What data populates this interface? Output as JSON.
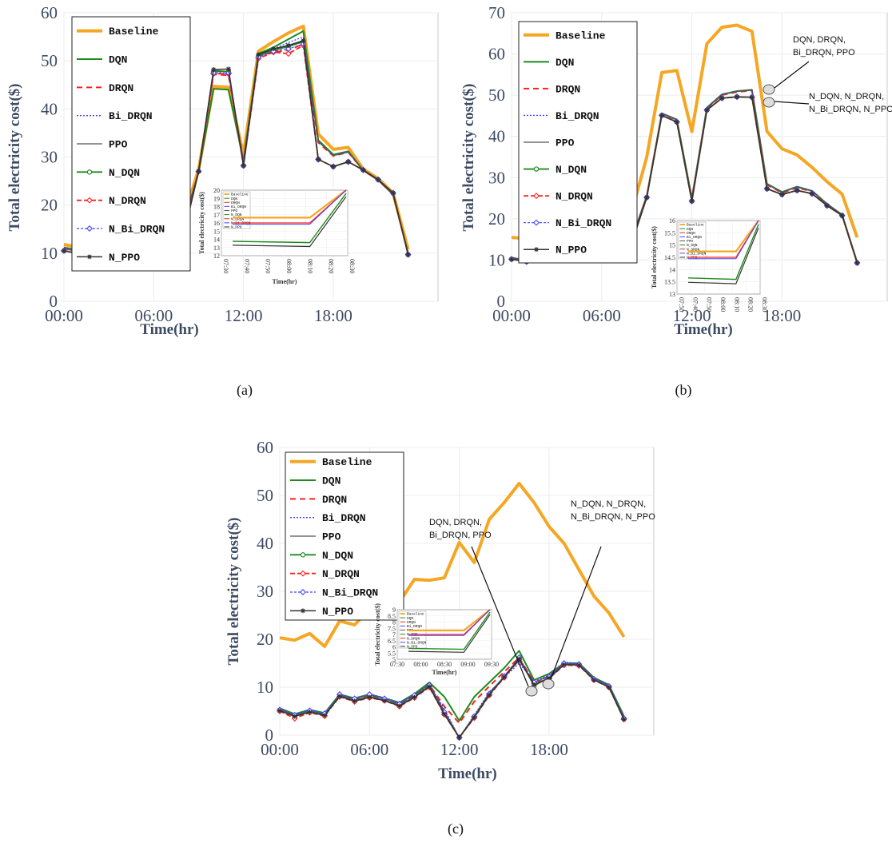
{
  "colors": {
    "Baseline": "#f5a623",
    "DQN": "#1f8a1f",
    "DRQN": "#ff2020",
    "Bi_DRQN": "#4444ff",
    "PPO": "#555555",
    "N_DQN": "#1f8a1f",
    "N_DRQN": "#ff2020",
    "N_Bi_DRQN": "#4444ff",
    "N_PPO": "#333333"
  },
  "legend_labels": [
    "Baseline",
    "DQN",
    "DRQN",
    "Bi_DRQN",
    "PPO",
    "N_DQN",
    "N_DRQN",
    "N_Bi_DRQN",
    "N_PPO"
  ],
  "chart_data": [
    {
      "type": "line",
      "caption": "(a)",
      "xlabel": "Time(hr)",
      "ylabel": "Total electricity cost($)",
      "xticks": [
        "00:00",
        "06:00",
        "12:00",
        "18:00"
      ],
      "yticks": [
        0,
        10,
        20,
        30,
        40,
        50,
        60
      ],
      "ylim": [
        0,
        60
      ],
      "x": [
        0,
        1,
        2,
        3,
        4,
        5,
        6,
        7,
        8,
        9,
        10,
        11,
        12,
        13,
        14,
        15,
        16,
        17,
        18,
        19,
        20,
        21,
        22,
        23
      ],
      "legend_position": "top-left",
      "grid": true,
      "series": [
        {
          "name": "Baseline",
          "values": [
            11.8,
            11.2,
            13.2,
            12.0,
            16.3,
            15.2,
            17.0,
            17.5,
            17.2,
            27.5,
            44.7,
            44.5,
            30.5,
            52.0,
            54.0,
            55.8,
            57.2,
            34.8,
            31.6,
            32.0,
            27.5,
            25.5,
            22.5,
            10.8
          ]
        },
        {
          "name": "DQN",
          "values": [
            11.2,
            10.6,
            12.6,
            11.4,
            15.5,
            14.5,
            16.3,
            16.6,
            16.2,
            26.8,
            44.2,
            44.0,
            29.2,
            51.5,
            52.8,
            54.5,
            56.2,
            33.5,
            30.5,
            31.2,
            27.2,
            25.2,
            22.2,
            10.0
          ]
        },
        {
          "name": "DRQN",
          "values": [
            11.0,
            10.4,
            12.4,
            11.2,
            15.3,
            14.3,
            16.0,
            16.4,
            16.0,
            27.0,
            47.2,
            47.0,
            29.0,
            51.0,
            51.8,
            52.2,
            53.5,
            33.0,
            30.2,
            31.0,
            27.2,
            25.2,
            22.2,
            9.9
          ]
        },
        {
          "name": "Bi_DRQN",
          "values": [
            11.1,
            10.5,
            12.5,
            11.3,
            15.4,
            14.4,
            16.2,
            16.5,
            16.1,
            27.0,
            47.5,
            47.3,
            29.2,
            51.2,
            52.5,
            53.8,
            55.0,
            33.2,
            30.4,
            31.1,
            27.2,
            25.2,
            22.2,
            9.9
          ]
        },
        {
          "name": "PPO",
          "values": [
            10.9,
            10.3,
            12.3,
            11.1,
            15.2,
            14.2,
            15.9,
            16.3,
            15.9,
            26.9,
            48.0,
            47.8,
            28.8,
            51.3,
            52.5,
            53.0,
            54.0,
            33.2,
            30.3,
            31.0,
            27.2,
            25.2,
            22.2,
            9.8
          ]
        },
        {
          "name": "N_DQN",
          "values": [
            10.5,
            9.9,
            11.8,
            10.7,
            14.5,
            13.5,
            14.7,
            14.8,
            14.0,
            27.0,
            47.8,
            47.8,
            28.2,
            51.0,
            52.2,
            53.0,
            54.0,
            29.5,
            28.0,
            29.0,
            27.3,
            25.3,
            22.5,
            9.7
          ]
        },
        {
          "name": "N_DRQN",
          "values": [
            10.5,
            9.9,
            11.8,
            10.7,
            14.5,
            13.5,
            14.7,
            14.8,
            14.0,
            27.0,
            47.3,
            47.3,
            28.2,
            50.5,
            51.8,
            51.5,
            53.2,
            29.5,
            28.0,
            29.0,
            27.3,
            25.3,
            22.5,
            9.7
          ]
        },
        {
          "name": "N_Bi_DRQN",
          "values": [
            10.5,
            9.9,
            11.8,
            10.7,
            14.5,
            13.5,
            14.7,
            14.8,
            14.0,
            27.0,
            47.5,
            47.5,
            28.2,
            50.8,
            52.0,
            52.5,
            53.5,
            29.5,
            28.0,
            29.0,
            27.3,
            25.3,
            22.5,
            9.7
          ]
        },
        {
          "name": "N_PPO",
          "values": [
            10.5,
            9.9,
            11.8,
            10.7,
            14.5,
            13.5,
            14.7,
            14.8,
            14.0,
            27.0,
            48.2,
            48.3,
            28.2,
            51.3,
            52.5,
            53.2,
            54.2,
            29.5,
            28.0,
            29.0,
            27.3,
            25.3,
            22.5,
            9.7
          ]
        }
      ],
      "inset": {
        "ylabel": "Total electricity cost($)",
        "xlabel": "Time(hr)",
        "xticks": [
          "07:30",
          "07:40",
          "07:50",
          "08:00",
          "08:10",
          "08:20",
          "08:30"
        ],
        "yticks": [
          12,
          13,
          14,
          15,
          16,
          17,
          18,
          19,
          20
        ]
      }
    },
    {
      "type": "line",
      "caption": "(b)",
      "xlabel": "Time(hr)",
      "ylabel": "Total electricity cost($)",
      "xticks": [
        "00:00",
        "06:00",
        "12:00",
        "18:00"
      ],
      "yticks": [
        0,
        10,
        20,
        30,
        40,
        50,
        60,
        70
      ],
      "ylim": [
        0,
        70
      ],
      "x": [
        0,
        1,
        2,
        3,
        4,
        5,
        6,
        7,
        8,
        9,
        10,
        11,
        12,
        13,
        14,
        15,
        16,
        17,
        18,
        19,
        20,
        21,
        22,
        23
      ],
      "legend_position": "top-left",
      "grid": true,
      "annotations": [
        "DQN,      DRQN,",
        "Bi_DRQN, PPO",
        "N_DQN,     N_DRQN,",
        "N_Bi_DRQN, N_PPO"
      ],
      "series": [
        {
          "name": "Baseline",
          "values": [
            15.5,
            15.2,
            17.2,
            16.2,
            19.8,
            18.8,
            20.5,
            21.0,
            21.8,
            35.0,
            55.5,
            56.0,
            41.2,
            62.5,
            66.5,
            67.0,
            65.5,
            41.2,
            37.0,
            35.5,
            32.5,
            29.0,
            26.0,
            15.5
          ]
        },
        {
          "name": "DQN",
          "values": [
            10.6,
            9.9,
            11.9,
            11.1,
            15.0,
            13.9,
            15.1,
            15.2,
            15.1,
            25.6,
            45.6,
            44.1,
            25.0,
            47.0,
            50.2,
            51.0,
            51.3,
            28.5,
            26.5,
            27.8,
            26.8,
            23.6,
            21.0,
            9.5
          ]
        },
        {
          "name": "DRQN",
          "values": [
            10.5,
            9.8,
            11.8,
            11.0,
            14.9,
            13.8,
            15.0,
            15.1,
            15.0,
            25.5,
            45.5,
            44.0,
            24.8,
            46.8,
            50.0,
            50.8,
            51.1,
            28.3,
            26.3,
            27.6,
            26.6,
            23.5,
            20.9,
            9.4
          ]
        },
        {
          "name": "Bi_DRQN",
          "values": [
            10.6,
            9.9,
            11.9,
            11.1,
            15.0,
            13.9,
            15.1,
            15.2,
            15.1,
            25.6,
            45.6,
            44.1,
            25.0,
            47.0,
            50.2,
            51.0,
            51.3,
            28.5,
            26.5,
            27.8,
            26.8,
            23.6,
            21.0,
            9.5
          ]
        },
        {
          "name": "PPO",
          "values": [
            10.5,
            9.8,
            11.8,
            11.0,
            14.9,
            13.8,
            15.0,
            15.1,
            15.0,
            25.5,
            45.5,
            44.0,
            24.8,
            46.8,
            50.1,
            50.9,
            51.2,
            28.4,
            26.4,
            27.7,
            26.7,
            23.5,
            20.9,
            9.4
          ]
        },
        {
          "name": "N_DQN",
          "values": [
            10.2,
            9.6,
            11.5,
            10.8,
            14.3,
            13.3,
            14.3,
            14.4,
            14.2,
            25.2,
            45.1,
            43.5,
            24.3,
            46.4,
            49.3,
            49.6,
            49.5,
            27.3,
            25.9,
            26.9,
            26.1,
            23.2,
            20.8,
            9.3
          ]
        },
        {
          "name": "N_DRQN",
          "values": [
            10.2,
            9.6,
            11.5,
            10.8,
            14.3,
            13.3,
            14.3,
            14.4,
            14.2,
            25.2,
            45.1,
            43.5,
            24.3,
            46.4,
            49.3,
            49.6,
            49.5,
            27.3,
            25.9,
            26.9,
            26.1,
            23.2,
            20.8,
            9.3
          ]
        },
        {
          "name": "N_Bi_DRQN",
          "values": [
            10.2,
            9.6,
            11.5,
            10.8,
            14.3,
            13.3,
            14.3,
            14.4,
            14.2,
            25.2,
            45.1,
            43.5,
            24.3,
            46.4,
            49.3,
            49.6,
            49.5,
            27.3,
            25.9,
            26.9,
            26.1,
            23.2,
            20.8,
            9.3
          ]
        },
        {
          "name": "N_PPO",
          "values": [
            10.2,
            9.6,
            11.5,
            10.8,
            14.3,
            13.3,
            14.3,
            14.4,
            14.2,
            25.2,
            45.1,
            43.5,
            24.3,
            46.4,
            49.3,
            49.6,
            49.5,
            27.3,
            25.9,
            26.9,
            26.1,
            23.2,
            20.8,
            9.3
          ]
        }
      ],
      "inset": {
        "ylabel": "Total electricity cost($)",
        "xlabel": "",
        "xticks": [
          "07:50",
          "07:40",
          "07:50",
          "08:00",
          "08:10",
          "08:20",
          "08:30"
        ],
        "yticks": [
          13,
          13.5,
          14,
          14.5,
          15,
          15.5,
          16
        ]
      }
    },
    {
      "type": "line",
      "caption": "(c)",
      "xlabel": "Time(hr)",
      "ylabel": "Total electricity cost($)",
      "xticks": [
        "00:00",
        "06:00",
        "12:00",
        "18:00"
      ],
      "yticks": [
        0,
        10,
        20,
        30,
        40,
        50,
        60
      ],
      "ylim": [
        0,
        60
      ],
      "x": [
        0,
        1,
        2,
        3,
        4,
        5,
        6,
        7,
        8,
        9,
        10,
        11,
        12,
        13,
        14,
        15,
        16,
        17,
        18,
        19,
        20,
        21,
        22,
        23
      ],
      "legend_position": "top-left",
      "grid": true,
      "annotations": [
        "DQN,      DRQN,",
        "Bi_DRQN, PPO",
        "N_DQN,     N_DRQN,",
        "N_Bi_DRQN, N_PPO"
      ],
      "series": [
        {
          "name": "Baseline",
          "values": [
            20.3,
            19.8,
            21.2,
            18.5,
            23.8,
            23.0,
            26.2,
            26.5,
            27.8,
            32.5,
            32.3,
            32.8,
            40.2,
            36.0,
            45.0,
            48.5,
            52.5,
            48.5,
            43.5,
            40.0,
            34.5,
            29.0,
            25.5,
            20.5
          ]
        },
        {
          "name": "DQN",
          "values": [
            5.6,
            4.4,
            5.3,
            4.6,
            8.5,
            7.7,
            8.5,
            7.7,
            6.8,
            8.6,
            11.0,
            8.0,
            3.0,
            8.0,
            11.0,
            14.0,
            17.6,
            11.5,
            12.8,
            15.0,
            15.0,
            12.0,
            10.5,
            4.0
          ]
        },
        {
          "name": "DRQN",
          "values": [
            5.3,
            4.0,
            5.0,
            4.3,
            8.2,
            7.4,
            8.2,
            7.5,
            6.5,
            8.2,
            10.5,
            6.0,
            2.5,
            7.0,
            10.2,
            13.2,
            16.2,
            11.0,
            12.3,
            14.8,
            14.8,
            11.8,
            10.2,
            3.6
          ]
        },
        {
          "name": "Bi_DRQN",
          "values": [
            5.5,
            4.3,
            5.2,
            4.5,
            8.4,
            7.6,
            8.6,
            7.8,
            6.8,
            8.5,
            10.5,
            5.5,
            -0.5,
            4.2,
            9.0,
            12.0,
            15.0,
            11.2,
            12.5,
            15.2,
            15.0,
            12.0,
            10.5,
            3.8
          ]
        },
        {
          "name": "PPO",
          "values": [
            5.4,
            4.2,
            5.1,
            4.4,
            8.3,
            7.5,
            8.4,
            7.6,
            6.6,
            8.4,
            10.6,
            5.0,
            -0.5,
            4.0,
            8.8,
            12.2,
            15.5,
            11.0,
            12.3,
            15.0,
            14.9,
            11.8,
            10.3,
            3.6
          ]
        },
        {
          "name": "N_DQN",
          "values": [
            5.2,
            4.0,
            4.9,
            4.2,
            8.1,
            7.2,
            8.0,
            7.3,
            6.2,
            8.0,
            10.2,
            4.5,
            -0.5,
            3.8,
            8.5,
            12.2,
            16.0,
            10.3,
            12.0,
            14.8,
            14.7,
            11.6,
            10.1,
            3.4
          ]
        },
        {
          "name": "N_DRQN",
          "values": [
            5.0,
            3.5,
            4.7,
            4.0,
            8.0,
            7.0,
            7.8,
            7.2,
            6.0,
            7.8,
            10.0,
            4.3,
            -0.5,
            3.6,
            8.3,
            12.0,
            15.8,
            10.8,
            11.8,
            14.6,
            14.5,
            11.5,
            10.0,
            3.3
          ]
        },
        {
          "name": "N_Bi_DRQN",
          "values": [
            5.3,
            4.2,
            5.1,
            4.5,
            8.5,
            7.6,
            8.5,
            7.6,
            6.5,
            8.3,
            10.4,
            4.8,
            -0.5,
            3.9,
            8.6,
            12.3,
            16.2,
            11.0,
            12.2,
            15.0,
            14.8,
            11.7,
            10.2,
            3.5
          ]
        },
        {
          "name": "N_PPO",
          "values": [
            5.1,
            3.9,
            4.8,
            4.1,
            8.1,
            7.1,
            7.9,
            7.2,
            6.1,
            7.9,
            10.1,
            4.4,
            -0.5,
            3.7,
            8.4,
            12.1,
            15.9,
            10.5,
            11.9,
            14.7,
            14.6,
            11.5,
            10.0,
            3.3
          ]
        }
      ],
      "inset": {
        "ylabel": "Total electricity cost($)",
        "xlabel": "Time(hr)",
        "xticks": [
          "07:30",
          "08:00",
          "08:30",
          "09:00",
          "09:30"
        ],
        "yticks": [
          5,
          5.5,
          6,
          6.5,
          7,
          7.5,
          8,
          8.5,
          9
        ]
      }
    }
  ]
}
